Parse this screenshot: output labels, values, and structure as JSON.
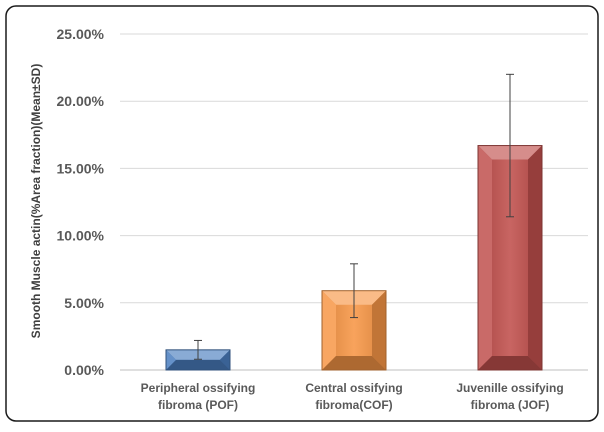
{
  "chart_data": {
    "type": "bar",
    "title": "",
    "xlabel": "",
    "ylabel": "Smooth Muscle actin(%Area fraction)(Mean±SD)",
    "ylim": [
      0,
      25
    ],
    "y_ticks": [
      "0.00%",
      "5.00%",
      "10.00%",
      "15.00%",
      "20.00%",
      "25.00%"
    ],
    "y_tick_values": [
      0,
      5,
      10,
      15,
      20,
      25
    ],
    "grid": true,
    "legend": "none",
    "categories": [
      [
        "Peripheral ossifying",
        "fibroma (POF)"
      ],
      [
        "Central ossifying",
        "fibroma(COF)"
      ],
      [
        "Juvenille ossifying",
        "fibroma (JOF)"
      ]
    ],
    "values": [
      1.5,
      5.9,
      16.7
    ],
    "error": [
      0.7,
      2.0,
      5.3
    ],
    "colors": [
      "#4a7ebf",
      "#f79646",
      "#c0504d"
    ]
  }
}
